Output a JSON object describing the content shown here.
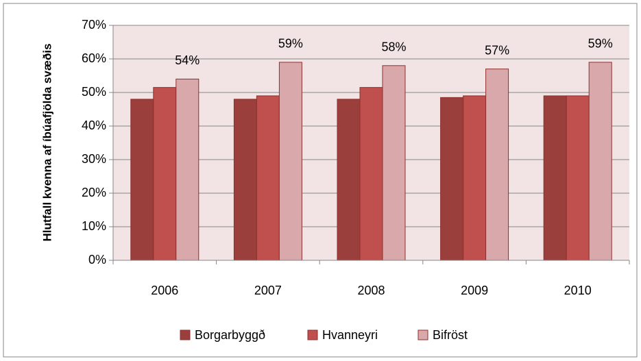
{
  "chart_data": {
    "type": "bar",
    "y_label": "Hlutfall kvenna af íbúafjölda svæðis",
    "categories": [
      "2006",
      "2007",
      "2008",
      "2009",
      "2010"
    ],
    "series": [
      {
        "name": "Borgarbyggð",
        "color": "#9b3f3d",
        "values": [
          48,
          48,
          48,
          48.5,
          49
        ]
      },
      {
        "name": "Hvanneyri",
        "color": "#c0504d",
        "values": [
          51.5,
          49,
          51.5,
          49,
          49
        ]
      },
      {
        "name": "Bifröst",
        "color": "#d9a8aa",
        "values": [
          54,
          59,
          58,
          57,
          59
        ],
        "value_labels": [
          "54%",
          "59%",
          "58%",
          "57%",
          "59%"
        ]
      }
    ],
    "ylim": [
      0,
      70
    ],
    "yticks": [
      {
        "value": 0,
        "label": "0%"
      },
      {
        "value": 10,
        "label": "10%"
      },
      {
        "value": 20,
        "label": "20%"
      },
      {
        "value": 30,
        "label": "30%"
      },
      {
        "value": 40,
        "label": "40%"
      },
      {
        "value": 50,
        "label": "50%"
      },
      {
        "value": 60,
        "label": "60%"
      },
      {
        "value": 70,
        "label": "70%"
      }
    ],
    "grid": true,
    "legend": "bottom"
  }
}
